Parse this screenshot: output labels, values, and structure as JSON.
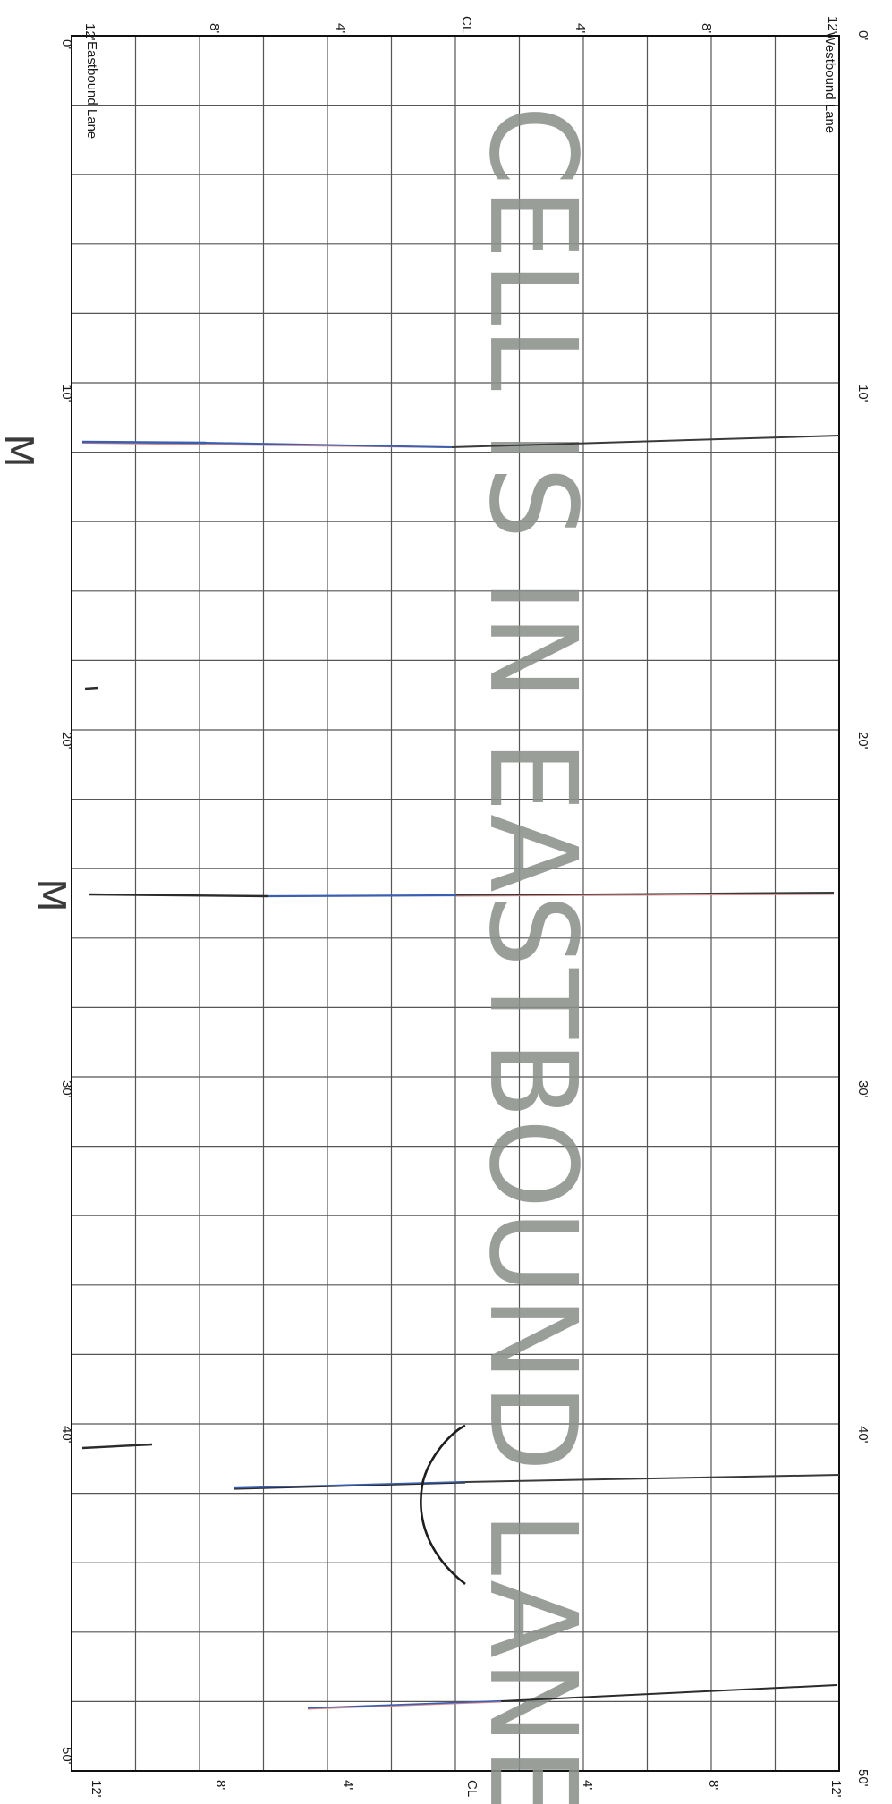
{
  "sheet": {
    "lanes": {
      "eastbound": "Eastbound Lane",
      "westbound": "Westbound Lane"
    },
    "top_scale": [
      "12'",
      "8'",
      "4'",
      "CL",
      "4'",
      "8'",
      "12'"
    ],
    "bottom_scale": [
      "12'",
      "8'",
      "4'",
      "CL",
      "4'",
      "8'",
      "12'"
    ],
    "length_marks_left": [
      "0'",
      "10'",
      "20'",
      "30'",
      "40'",
      "50'"
    ],
    "length_marks_right": [
      "0'",
      "10'",
      "20'",
      "30'",
      "40'",
      "50'"
    ],
    "watermark": "CELL IS IN EASTBOUND LANE",
    "handwritten_marks": [
      "M",
      "M"
    ],
    "colors": {
      "grid": "#555555",
      "watermark": "#8b918c",
      "ink_black": "#2b2b2b",
      "ink_blue": "#3b5fb0",
      "ink_red": "#d98a8a"
    },
    "crack_annotations": [
      {
        "type": "transverse crack",
        "position_ft": 12
      },
      {
        "type": "transverse crack",
        "position_ft": 25
      },
      {
        "type": "transverse crack",
        "position_ft": 42
      },
      {
        "type": "curved crack near centerline",
        "from_ft": 40,
        "to_ft": 45
      },
      {
        "type": "transverse crack",
        "position_ft": 48
      }
    ]
  }
}
